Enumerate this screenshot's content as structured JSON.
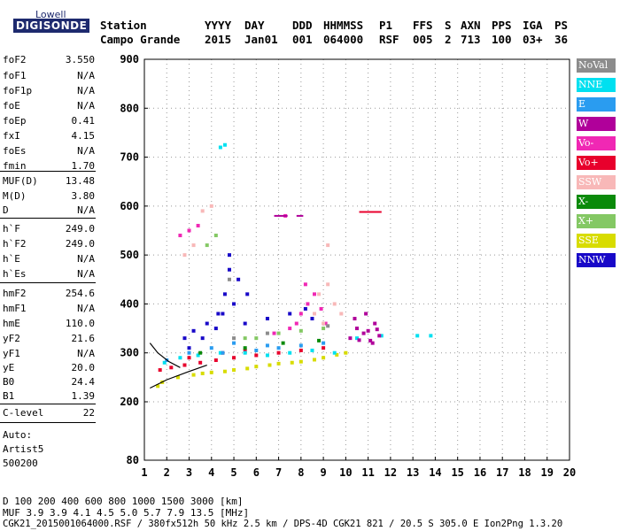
{
  "logo": {
    "top": "Lowell",
    "bottom": "DIGISONDE"
  },
  "header": {
    "labels": [
      "Station",
      "YYYY",
      "DAY",
      "DDD",
      "HHMMSS",
      "P1",
      "FFS",
      "S",
      "AXN",
      "PPS",
      "IGA",
      "PS"
    ],
    "values": [
      "Campo Grande",
      "2015",
      "Jan01",
      "001",
      "064000",
      "RSF",
      "005",
      "2",
      "713",
      "100",
      "03+",
      "36"
    ]
  },
  "params": {
    "group1": [
      {
        "name": "foF2",
        "value": "3.550"
      },
      {
        "name": "foF1",
        "value": "N/A"
      },
      {
        "name": "foF1p",
        "value": "N/A"
      },
      {
        "name": "foE",
        "value": "N/A"
      },
      {
        "name": "foEp",
        "value": "0.41"
      },
      {
        "name": "fxI",
        "value": "4.15"
      },
      {
        "name": "foEs",
        "value": "N/A"
      },
      {
        "name": "fmin",
        "value": "1.70"
      }
    ],
    "group2": [
      {
        "name": "MUF(D)",
        "value": "13.48"
      },
      {
        "name": "M(D)",
        "value": "3.80"
      },
      {
        "name": "D",
        "value": "N/A"
      }
    ],
    "group3": [
      {
        "name": "h`F",
        "value": "249.0"
      },
      {
        "name": "h`F2",
        "value": "249.0"
      },
      {
        "name": "h`E",
        "value": "N/A"
      },
      {
        "name": "h`Es",
        "value": "N/A"
      }
    ],
    "group4": [
      {
        "name": "hmF2",
        "value": "254.6"
      },
      {
        "name": "hmF1",
        "value": "N/A"
      },
      {
        "name": "hmE",
        "value": "110.0"
      },
      {
        "name": "yF2",
        "value": "21.6"
      },
      {
        "name": "yF1",
        "value": "N/A"
      },
      {
        "name": "yE",
        "value": "20.0"
      },
      {
        "name": "B0",
        "value": "24.4"
      },
      {
        "name": "B1",
        "value": "1.39"
      }
    ],
    "group5": [
      {
        "name": "C-level",
        "value": "22"
      }
    ]
  },
  "autoscale": {
    "line1": "Auto:",
    "line2": "Artist5",
    "line3": "500200"
  },
  "legend": [
    {
      "label": "NoVal",
      "color": "#8c8c8c"
    },
    {
      "label": "NNE",
      "color": "#00e0f0"
    },
    {
      "label": "E",
      "color": "#2a9cf0"
    },
    {
      "label": "W",
      "color": "#b0009a"
    },
    {
      "label": "Vo-",
      "color": "#f028b4"
    },
    {
      "label": "Vo+",
      "color": "#e8002c"
    },
    {
      "label": "SSW",
      "color": "#f8b8b8"
    },
    {
      "label": "X-",
      "color": "#0a8a0a"
    },
    {
      "label": "X+",
      "color": "#84c864"
    },
    {
      "label": "SSE",
      "color": "#d8dc00"
    },
    {
      "label": "NNW",
      "color": "#1808c8"
    }
  ],
  "footer": {
    "d_row": "D     100  200  400  600  800 1000 1500 3000 [km]",
    "muf_row": "MUF   3.9  3.9  4.1  4.5  5.0  5.7  7.9 13.5 [MHz]",
    "file_row": "CGK21_2015001064000.RSF / 380fx512h 50 kHz 2.5 km / DPS-4D CGK21 821 / 20.5 S 305.0 E Ion2Png 1.3.20"
  },
  "chart_data": {
    "type": "scatter",
    "title": "",
    "xlabel": "",
    "ylabel": "",
    "xlim": [
      1,
      20
    ],
    "ylim": [
      80,
      900
    ],
    "x_ticks": [
      1,
      2,
      3,
      4,
      5,
      6,
      7,
      8,
      9,
      10,
      11,
      12,
      13,
      14,
      15,
      16,
      17,
      18,
      19,
      20
    ],
    "y_ticks": [
      80,
      200,
      300,
      400,
      500,
      600,
      700,
      800,
      900
    ],
    "grid": true,
    "series": [
      {
        "name": "SSE",
        "points": [
          [
            1.8,
            240
          ],
          [
            2.5,
            250
          ],
          [
            3.2,
            255
          ],
          [
            4,
            260
          ],
          [
            5,
            265
          ],
          [
            6,
            272
          ],
          [
            7,
            278
          ],
          [
            8,
            282
          ],
          [
            9,
            290
          ],
          [
            10,
            300
          ],
          [
            1.6,
            232
          ],
          [
            3.6,
            258
          ],
          [
            4.6,
            262
          ],
          [
            5.6,
            268
          ],
          [
            6.6,
            275
          ],
          [
            7.6,
            280
          ],
          [
            8.6,
            286
          ],
          [
            9.6,
            296
          ]
        ]
      },
      {
        "name": "Vo+",
        "points": [
          [
            1.7,
            265
          ],
          [
            2.2,
            270
          ],
          [
            2.8,
            275
          ],
          [
            3.5,
            280
          ],
          [
            4.2,
            285
          ],
          [
            5,
            290
          ],
          [
            6,
            295
          ],
          [
            7,
            300
          ],
          [
            8,
            305
          ],
          [
            9,
            310
          ],
          [
            3,
            290
          ],
          [
            4.5,
            300
          ],
          [
            5.5,
            305
          ]
        ]
      },
      {
        "name": "NNE",
        "points": [
          [
            1.9,
            280
          ],
          [
            2.6,
            290
          ],
          [
            3.4,
            295
          ],
          [
            4.4,
            300
          ],
          [
            5.5,
            300
          ],
          [
            6.5,
            295
          ],
          [
            7.5,
            300
          ],
          [
            8.5,
            305
          ],
          [
            9.5,
            300
          ],
          [
            10.5,
            330
          ],
          [
            11.6,
            335
          ],
          [
            13.2,
            335
          ],
          [
            13.8,
            335
          ],
          [
            4.6,
            725
          ],
          [
            4.4,
            720
          ]
        ]
      },
      {
        "name": "E",
        "points": [
          [
            2,
            285
          ],
          [
            3,
            300
          ],
          [
            4,
            310
          ],
          [
            5,
            320
          ],
          [
            6,
            305
          ],
          [
            7,
            310
          ],
          [
            8,
            315
          ],
          [
            9,
            320
          ],
          [
            4.5,
            300
          ],
          [
            6.5,
            315
          ]
        ]
      },
      {
        "name": "W",
        "points": [
          [
            10.2,
            330
          ],
          [
            10.5,
            350
          ],
          [
            10.8,
            340
          ],
          [
            11.1,
            325
          ],
          [
            11.3,
            360
          ],
          [
            11.5,
            335
          ],
          [
            10.4,
            370
          ],
          [
            11,
            345
          ],
          [
            10.9,
            380
          ],
          [
            11.2,
            320
          ],
          [
            10.6,
            326
          ],
          [
            11.4,
            348
          ]
        ]
      },
      {
        "name": "NNW",
        "points": [
          [
            2.8,
            330
          ],
          [
            3.2,
            345
          ],
          [
            3.8,
            360
          ],
          [
            4.3,
            380
          ],
          [
            4.6,
            420
          ],
          [
            4.8,
            470
          ],
          [
            5.2,
            450
          ],
          [
            5.6,
            420
          ],
          [
            5,
            400
          ],
          [
            4.2,
            350
          ],
          [
            3.6,
            330
          ],
          [
            4.5,
            380
          ],
          [
            5.5,
            360
          ],
          [
            6.5,
            370
          ],
          [
            7.5,
            380
          ],
          [
            8.2,
            390
          ],
          [
            8.5,
            370
          ],
          [
            3,
            310
          ],
          [
            4.8,
            500
          ]
        ]
      },
      {
        "name": "Vo-",
        "points": [
          [
            7.8,
            360
          ],
          [
            8,
            380
          ],
          [
            8.3,
            400
          ],
          [
            8.6,
            420
          ],
          [
            8.9,
            390
          ],
          [
            7.5,
            350
          ],
          [
            8.2,
            440
          ],
          [
            9.1,
            360
          ],
          [
            6.8,
            340
          ],
          [
            3,
            550
          ],
          [
            2.6,
            540
          ],
          [
            3.4,
            560
          ],
          [
            7.3,
            580
          ]
        ]
      },
      {
        "name": "SSW",
        "points": [
          [
            8.8,
            420
          ],
          [
            9.2,
            440
          ],
          [
            9.5,
            400
          ],
          [
            8.6,
            380
          ],
          [
            9,
            360
          ],
          [
            9.8,
            380
          ],
          [
            3.2,
            520
          ],
          [
            3.6,
            590
          ],
          [
            2.8,
            500
          ],
          [
            4,
            600
          ],
          [
            9.2,
            520
          ]
        ]
      },
      {
        "name": "X+",
        "points": [
          [
            6,
            330
          ],
          [
            7,
            340
          ],
          [
            8,
            345
          ],
          [
            9,
            350
          ],
          [
            5.5,
            330
          ],
          [
            3.8,
            520
          ],
          [
            4.2,
            540
          ]
        ]
      },
      {
        "name": "X-",
        "points": [
          [
            3.5,
            300
          ],
          [
            5.5,
            310
          ],
          [
            7.2,
            320
          ],
          [
            8.8,
            325
          ]
        ]
      },
      {
        "name": "NoVal",
        "points": [
          [
            5,
            330
          ],
          [
            6.5,
            340
          ],
          [
            9.2,
            355
          ],
          [
            4.8,
            450
          ]
        ]
      }
    ],
    "lines": [
      {
        "name": "trace-upper",
        "points": [
          [
            1.25,
            320
          ],
          [
            1.6,
            300
          ],
          [
            2.1,
            282
          ],
          [
            2.6,
            270
          ]
        ]
      },
      {
        "name": "trace-lower",
        "points": [
          [
            1.25,
            228
          ],
          [
            2,
            245
          ],
          [
            3,
            262
          ],
          [
            3.8,
            275
          ]
        ]
      }
    ],
    "hlines": [
      {
        "name": "Vo+",
        "y": 588,
        "x": [
          10.6,
          11.6
        ]
      },
      {
        "name": "W",
        "y": 580,
        "x": [
          6.8,
          7.4
        ]
      },
      {
        "name": "W",
        "y": 580,
        "x": [
          7.8,
          8.1
        ]
      }
    ]
  }
}
